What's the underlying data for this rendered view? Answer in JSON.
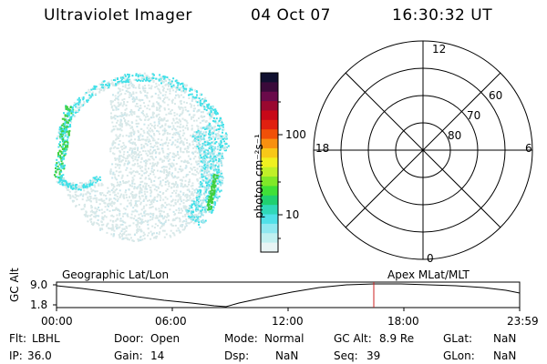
{
  "header": {
    "instrument": "Ultraviolet Imager",
    "date": "04 Oct 07",
    "time": "16:30:32 UT"
  },
  "colorbar": {
    "label": "photon cm⁻²s⁻¹",
    "ticks": [
      "100",
      "10"
    ],
    "colors": [
      "#101030",
      "#3a0a3a",
      "#6a0a4a",
      "#9a0830",
      "#c80818",
      "#e02010",
      "#f05008",
      "#f89010",
      "#f8c818",
      "#f0f020",
      "#c0f028",
      "#80e828",
      "#40e038",
      "#20d070",
      "#30d8b8",
      "#50e0e8",
      "#90e8f0",
      "#c0f0f0",
      "#e8f4f4"
    ]
  },
  "image_panel": {
    "aurora_color": "#40e0e8",
    "bright_color": "#40d040",
    "background_dots": "#d8e8e8"
  },
  "polar_grid": {
    "top_label": "12",
    "bottom_label": "0",
    "left_label": "18",
    "right_label": "6",
    "lat_labels": [
      "60",
      "70",
      "80"
    ]
  },
  "timeline": {
    "axis_title": "GC Alt",
    "y_ticks": [
      "9.0",
      "1.8"
    ],
    "x_ticks": [
      "00:00",
      "06:00",
      "12:00",
      "18:00",
      "23:59"
    ],
    "left_label": "Geographic Lat/Lon",
    "right_label": "Apex MLat/MLT",
    "marker_color": "#cc2222"
  },
  "info": {
    "flt_label": "Flt:",
    "flt": "LBHL",
    "door_label": "Door:",
    "door": "Open",
    "mode_label": "Mode:",
    "mode": "Normal",
    "gcalt_label": "GC Alt:",
    "gcalt": "8.9 Re",
    "glat_label": "GLat:",
    "glat": "NaN",
    "ip_label": "IP:",
    "ip": "36.0",
    "gain_label": "Gain:",
    "gain": "14",
    "dsp_label": "Dsp:",
    "dsp": "NaN",
    "seq_label": "Seq:",
    "seq": "39",
    "glon_label": "GLon:",
    "glon": "NaN"
  }
}
